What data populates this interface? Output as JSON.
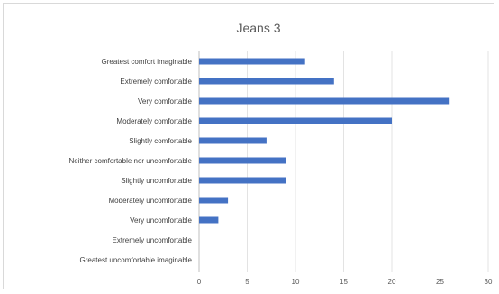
{
  "chart_data": {
    "type": "bar",
    "orientation": "horizontal",
    "title": "Jeans 3",
    "xlabel": "",
    "ylabel": "",
    "categories": [
      "Greatest comfort imaginable",
      "Extremely comfortable",
      "Very comfortable",
      "Moderately comfortable",
      "Slightly comfortable",
      "Neither comfortable nor uncomfortable",
      "Slightly uncomfortable",
      "Moderately uncomfortable",
      "Very uncomfortable",
      "Extremely uncomfortable",
      "Greatest  uncomfortable imaginable"
    ],
    "values": [
      11,
      14,
      26,
      20,
      7,
      9,
      9,
      3,
      2,
      0,
      0
    ],
    "xlim": [
      0,
      30
    ],
    "xticks": [
      "0",
      "5",
      "10",
      "15",
      "20",
      "25",
      "30"
    ],
    "grid": true,
    "legend": "none",
    "bar_color": "#4472c4"
  }
}
